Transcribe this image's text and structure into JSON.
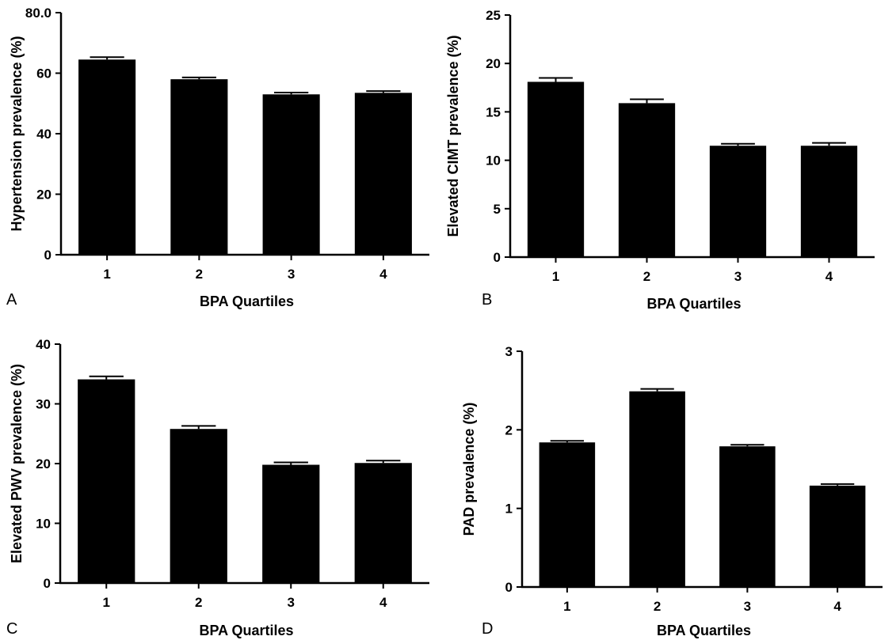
{
  "colors": {
    "bar": "#000000",
    "axis": "#000000",
    "background": "#ffffff"
  },
  "chart_data": [
    {
      "panel": "A",
      "type": "bar",
      "categories": [
        "1",
        "2",
        "3",
        "4"
      ],
      "values": [
        64.5,
        58,
        53,
        53.5
      ],
      "errors": [
        0.8,
        0.6,
        0.6,
        0.6
      ],
      "xlabel": "BPA Quartiles",
      "ylabel": "Hypertension prevalence (%)",
      "ylim": [
        0,
        80
      ],
      "yticks": [
        "0",
        "20",
        "40",
        "60",
        "80.0"
      ],
      "ytick_values": [
        0,
        20,
        40,
        60,
        80
      ],
      "grid": false
    },
    {
      "panel": "B",
      "type": "bar",
      "categories": [
        "1",
        "2",
        "3",
        "4"
      ],
      "values": [
        18.1,
        15.9,
        11.5,
        11.5
      ],
      "errors": [
        0.4,
        0.4,
        0.2,
        0.3
      ],
      "xlabel": "BPA Quartiles",
      "ylabel": "Elevated CIMT prevalence (%)",
      "ylim": [
        0,
        25
      ],
      "yticks": [
        "0",
        "5",
        "10",
        "15",
        "20",
        "25"
      ],
      "ytick_values": [
        0,
        5,
        10,
        15,
        20,
        25
      ],
      "grid": false
    },
    {
      "panel": "C",
      "type": "bar",
      "categories": [
        "1",
        "2",
        "3",
        "4"
      ],
      "values": [
        34.1,
        25.8,
        19.8,
        20.1
      ],
      "errors": [
        0.5,
        0.5,
        0.4,
        0.4
      ],
      "xlabel": "BPA Quartiles",
      "ylabel": "Elevated PWV prevalence (%)",
      "ylim": [
        0,
        40
      ],
      "yticks": [
        "0",
        "10",
        "20",
        "30",
        "40"
      ],
      "ytick_values": [
        0,
        10,
        20,
        30,
        40
      ],
      "grid": false
    },
    {
      "panel": "D",
      "type": "bar",
      "categories": [
        "1",
        "2",
        "3",
        "4"
      ],
      "values": [
        1.84,
        2.49,
        1.79,
        1.29
      ],
      "errors": [
        0.02,
        0.03,
        0.02,
        0.02
      ],
      "xlabel": "BPA Quartiles",
      "ylabel": "PAD prevalence (%)",
      "ylim": [
        0,
        3
      ],
      "yticks": [
        "0",
        "1",
        "2",
        "3"
      ],
      "ytick_values": [
        0,
        1,
        2,
        3
      ],
      "grid": false
    }
  ]
}
